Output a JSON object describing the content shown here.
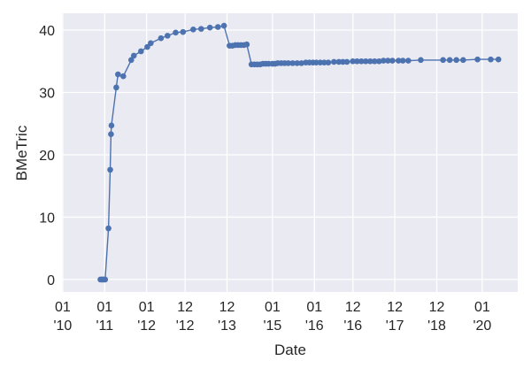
{
  "chart_data": {
    "type": "line",
    "title": "",
    "xlabel": "Date",
    "ylabel": "BMeTric",
    "xlim": [
      "2009-12-25",
      "2020-11-05"
    ],
    "ylim": [
      -2,
      42.7
    ],
    "grid": true,
    "colors": {
      "background": "#eaeaf2",
      "grid": "#ffffff",
      "series": "#4c72b0"
    },
    "yticks": [
      0,
      10,
      20,
      30,
      40
    ],
    "xticks": [
      {
        "date": "2010-01-01",
        "line1": "01",
        "line2": "'10"
      },
      {
        "date": "2011-01-01",
        "line1": "01",
        "line2": "'11"
      },
      {
        "date": "2012-01-01",
        "line1": "01",
        "line2": "'12"
      },
      {
        "date": "2012-12-01",
        "line1": "12",
        "line2": "'12"
      },
      {
        "date": "2013-12-01",
        "line1": "12",
        "line2": "'13"
      },
      {
        "date": "2015-01-01",
        "line1": "01",
        "line2": "'15"
      },
      {
        "date": "2016-01-01",
        "line1": "01",
        "line2": "'16"
      },
      {
        "date": "2016-12-01",
        "line1": "12",
        "line2": "'16"
      },
      {
        "date": "2017-12-01",
        "line1": "12",
        "line2": "'17"
      },
      {
        "date": "2018-12-01",
        "line1": "12",
        "line2": "'18"
      },
      {
        "date": "2020-01-01",
        "line1": "01",
        "line2": "'20"
      }
    ],
    "series": [
      {
        "x": [
          "2010-11-25",
          "2010-12-05",
          "2010-12-15",
          "2010-12-25",
          "2011-01-05",
          "2011-02-03",
          "2011-02-18",
          "2011-02-25",
          "2011-03-01",
          "2011-04-12",
          "2011-04-27",
          "2011-06-12",
          "2011-08-20",
          "2011-09-12",
          "2011-11-13",
          "2012-01-07",
          "2012-02-06",
          "2012-05-05",
          "2012-07-01",
          "2012-09-10",
          "2012-11-13",
          "2013-02-10",
          "2013-04-20",
          "2013-07-05",
          "2013-09-13",
          "2013-11-05",
          "2013-12-23",
          "2014-01-17",
          "2014-02-11",
          "2014-03-08",
          "2014-04-02",
          "2014-04-27",
          "2014-05-22",
          "2014-07-02",
          "2014-07-27",
          "2014-08-21",
          "2014-09-15",
          "2014-10-10",
          "2014-11-04",
          "2014-11-29",
          "2015-01-01",
          "2015-01-24",
          "2015-02-16",
          "2015-03-18",
          "2015-04-17",
          "2015-05-18",
          "2015-06-25",
          "2015-08-03",
          "2015-09-10",
          "2015-10-18",
          "2015-11-18",
          "2015-12-19",
          "2016-01-17",
          "2016-02-21",
          "2016-03-27",
          "2016-05-01",
          "2016-06-19",
          "2016-08-01",
          "2016-09-05",
          "2016-10-10",
          "2016-11-30",
          "2017-01-06",
          "2017-02-13",
          "2017-03-23",
          "2017-05-01",
          "2017-06-08",
          "2017-07-17",
          "2017-08-24",
          "2017-10-02",
          "2017-11-10",
          "2018-01-02",
          "2018-02-09",
          "2018-03-28",
          "2018-07-15",
          "2019-01-25",
          "2019-03-24",
          "2019-05-21",
          "2019-07-19",
          "2019-11-21",
          "2020-03-15",
          "2020-05-21"
        ],
        "y": [
          0,
          0,
          0,
          0,
          0,
          8.2,
          17.6,
          23.3,
          24.7,
          30.8,
          32.9,
          32.6,
          35.2,
          35.9,
          36.6,
          37.3,
          37.9,
          38.7,
          39.1,
          39.6,
          39.7,
          40.1,
          40.2,
          40.4,
          40.5,
          40.7,
          37.5,
          37.5,
          37.6,
          37.6,
          37.6,
          37.6,
          37.7,
          34.5,
          34.5,
          34.5,
          34.5,
          34.6,
          34.6,
          34.6,
          34.6,
          34.6,
          34.7,
          34.7,
          34.7,
          34.7,
          34.7,
          34.7,
          34.7,
          34.8,
          34.8,
          34.8,
          34.8,
          34.8,
          34.8,
          34.8,
          34.9,
          34.9,
          34.9,
          34.9,
          35.0,
          35.0,
          35.0,
          35.0,
          35.0,
          35.0,
          35.0,
          35.1,
          35.1,
          35.1,
          35.1,
          35.1,
          35.1,
          35.2,
          35.2,
          35.2,
          35.2,
          35.2,
          35.3,
          35.3,
          35.3
        ]
      }
    ]
  }
}
